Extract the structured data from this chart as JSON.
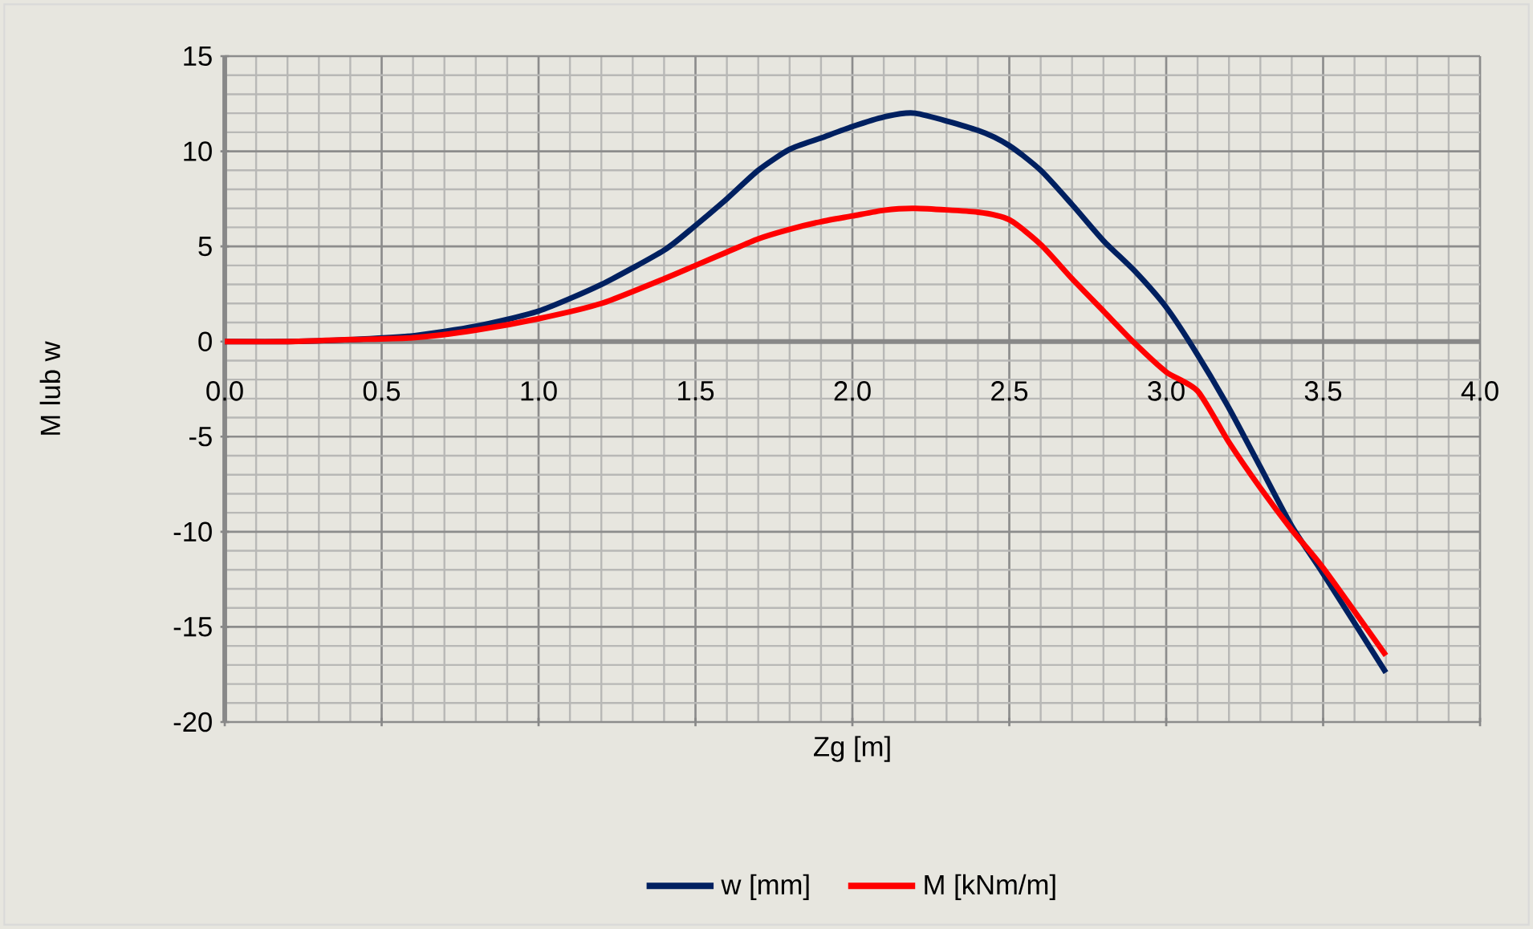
{
  "chart_data": {
    "type": "line",
    "xlabel": "Zg  [m]",
    "ylabel": "M  lub  w",
    "xlim": [
      0.0,
      4.0
    ],
    "xticks": [
      {
        "value": 0,
        "label": "0.0"
      },
      {
        "value": 0.5,
        "label": "0.5"
      },
      {
        "value": 1,
        "label": "1.0"
      },
      {
        "value": 1.5,
        "label": "1.5"
      },
      {
        "value": 2,
        "label": "2.0"
      },
      {
        "value": 2.5,
        "label": "2.5"
      },
      {
        "value": 3,
        "label": "3.0"
      },
      {
        "value": 3.5,
        "label": "3.5"
      },
      {
        "value": 4,
        "label": "4.0"
      }
    ],
    "ylim": [
      -20,
      15
    ],
    "yticks": [
      -20,
      -15,
      -10,
      -5,
      0,
      5,
      10,
      15
    ],
    "x": [
      0.0,
      0.2,
      0.4,
      0.6,
      0.8,
      1.0,
      1.2,
      1.4,
      1.5,
      1.6,
      1.7,
      1.8,
      1.9,
      2.0,
      2.1,
      2.2,
      2.4,
      2.5,
      2.6,
      2.7,
      2.8,
      2.9,
      3.0,
      3.1,
      3.2,
      3.3,
      3.4,
      3.5,
      3.7
    ],
    "series": [
      {
        "name": "w  [mm]",
        "color": "#002060",
        "values": [
          0,
          0.0,
          0.1,
          0.3,
          0.8,
          1.6,
          3.0,
          4.8,
          6.1,
          7.5,
          9.0,
          10.1,
          10.7,
          11.3,
          11.8,
          12.0,
          11.1,
          10.3,
          9.0,
          7.2,
          5.3,
          3.7,
          1.8,
          -0.7,
          -3.5,
          -6.6,
          -9.7,
          -12.2,
          -17.4
        ]
      },
      {
        "name": "M  [kNm/m]",
        "color": "#ff0000",
        "values": [
          0,
          0.0,
          0.1,
          0.2,
          0.6,
          1.2,
          2.0,
          3.3,
          4.0,
          4.7,
          5.4,
          5.9,
          6.3,
          6.6,
          6.9,
          7.0,
          6.8,
          6.4,
          5.1,
          3.3,
          1.6,
          -0.1,
          -1.6,
          -2.6,
          -5.3,
          -7.7,
          -9.9,
          -11.9,
          -16.5
        ]
      }
    ],
    "grid": true,
    "legend": "bottom",
    "marker": "none",
    "line_style": "solid"
  }
}
